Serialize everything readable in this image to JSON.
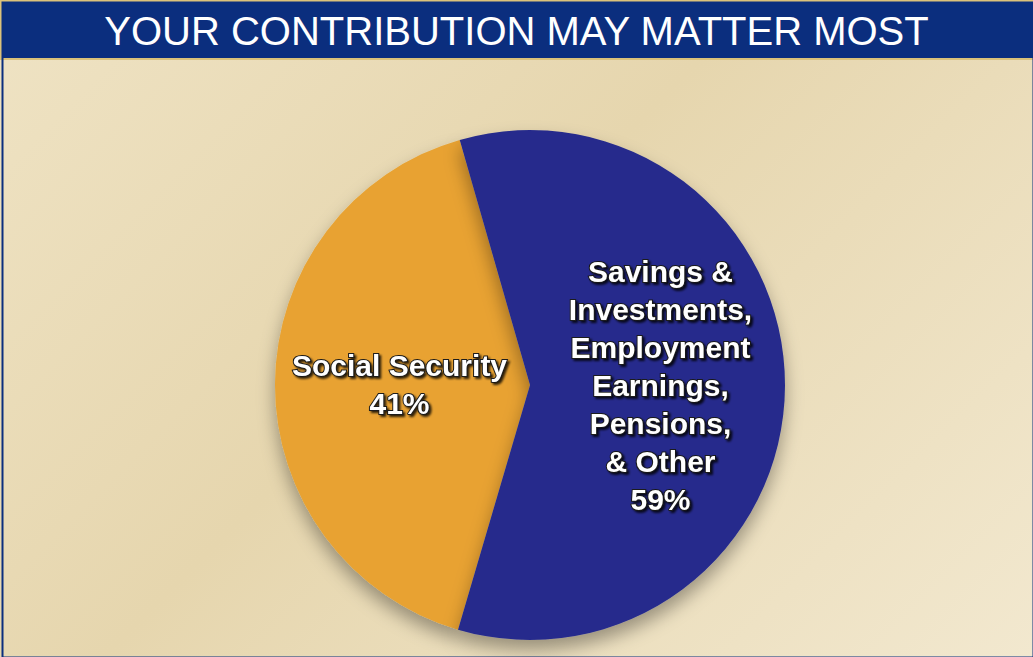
{
  "chart_data": {
    "type": "pie",
    "title": "YOUR CONTRIBUTION MAY MATTER MOST",
    "categories": [
      "Social Security",
      "Savings & Investments, Employment Earnings, Pensions, & Other"
    ],
    "values": [
      41,
      59
    ],
    "value_labels": [
      "41%",
      "59%"
    ],
    "colors": [
      "#E8A232",
      "#262C8C"
    ],
    "data_labels": true
  }
}
